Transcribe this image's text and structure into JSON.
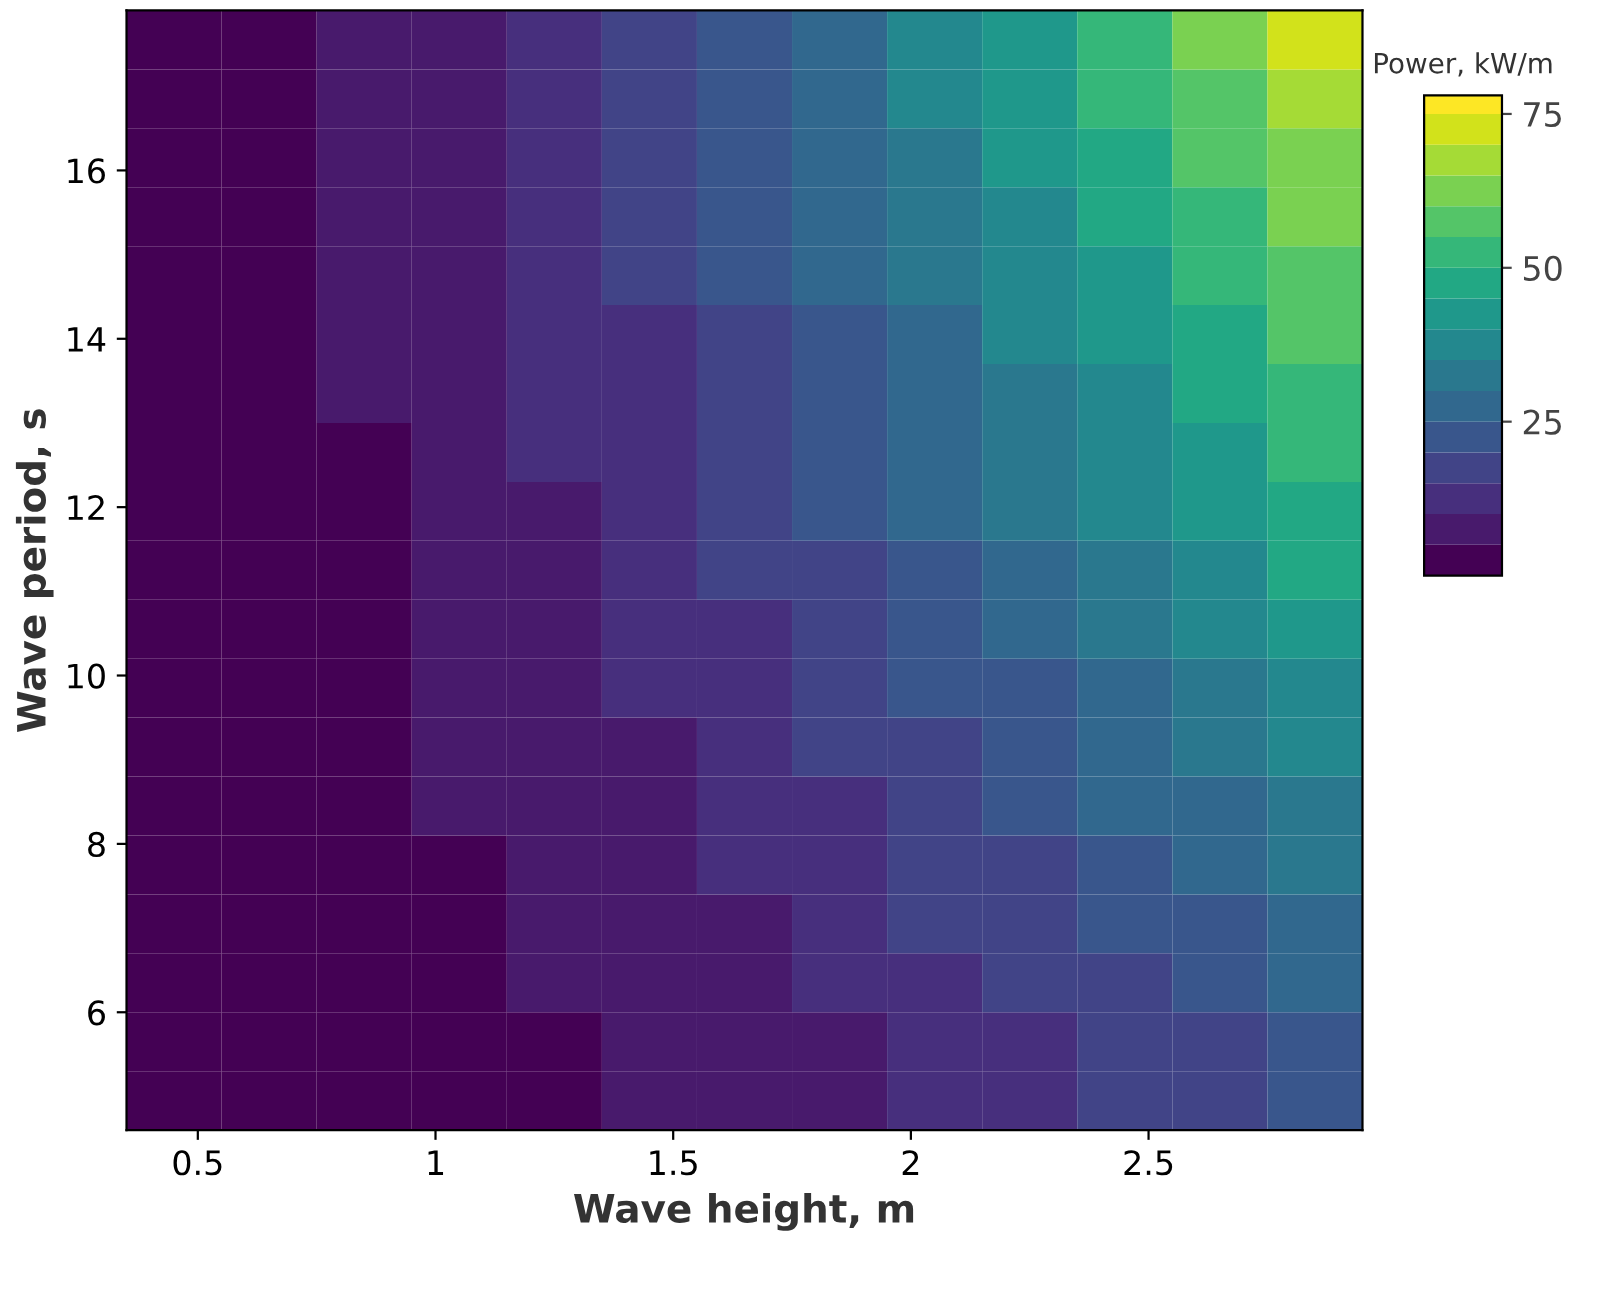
{
  "chart_data": {
    "type": "heatmap",
    "xlabel": "Wave height, m",
    "ylabel": "Wave period, s",
    "clabel": "Power, kW/m",
    "x": [
      0.45,
      0.65,
      0.85,
      1.05,
      1.25,
      1.45,
      1.65,
      1.85,
      2.05,
      2.25,
      2.45,
      2.65,
      2.85
    ],
    "y": [
      17.55,
      16.85,
      16.15,
      15.45,
      14.75,
      14.05,
      13.35,
      12.65,
      11.95,
      11.25,
      10.55,
      9.85,
      9.15,
      8.45,
      7.75,
      7.05,
      6.35,
      5.65,
      4.95
    ],
    "cells": [
      [
        2,
        4,
        6,
        9,
        13,
        18,
        23,
        29,
        36,
        44,
        52,
        60,
        70
      ],
      [
        2,
        3,
        6,
        9,
        13,
        17,
        22,
        28,
        35,
        42,
        50,
        58,
        67
      ],
      [
        2,
        3,
        6,
        9,
        12,
        17,
        22,
        27,
        33,
        40,
        47,
        56,
        64
      ],
      [
        2,
        3,
        5,
        8,
        12,
        16,
        21,
        26,
        32,
        38,
        45,
        53,
        61
      ],
      [
        1,
        3,
        5,
        8,
        11,
        15,
        20,
        25,
        30,
        37,
        43,
        51,
        59
      ],
      [
        1,
        3,
        5,
        8,
        11,
        14,
        19,
        24,
        29,
        35,
        41,
        48,
        56
      ],
      [
        1,
        3,
        5,
        7,
        10,
        14,
        18,
        22,
        27,
        33,
        39,
        46,
        53
      ],
      [
        1,
        3,
        4,
        7,
        10,
        13,
        17,
        21,
        26,
        31,
        37,
        44,
        50
      ],
      [
        1,
        2,
        4,
        6,
        9,
        12,
        16,
        20,
        25,
        30,
        35,
        41,
        48
      ],
      [
        1,
        2,
        4,
        6,
        9,
        12,
        15,
        19,
        23,
        28,
        33,
        39,
        45
      ],
      [
        1,
        2,
        4,
        6,
        8,
        11,
        14,
        18,
        22,
        26,
        31,
        36,
        42
      ],
      [
        1,
        2,
        3,
        5,
        8,
        10,
        13,
        17,
        20,
        24,
        29,
        34,
        39
      ],
      [
        1,
        2,
        3,
        5,
        7,
        9,
        12,
        15,
        19,
        23,
        27,
        31,
        36
      ],
      [
        1,
        2,
        3,
        5,
        6,
        9,
        11,
        14,
        17,
        21,
        25,
        29,
        34
      ],
      [
        1,
        2,
        3,
        4,
        6,
        8,
        10,
        13,
        16,
        19,
        23,
        27,
        31
      ],
      [
        1,
        1,
        2,
        4,
        5,
        7,
        9,
        12,
        15,
        17,
        21,
        24,
        28
      ],
      [
        1,
        1,
        2,
        3,
        5,
        7,
        8,
        11,
        13,
        16,
        19,
        22,
        25
      ],
      [
        1,
        1,
        2,
        3,
        4,
        6,
        8,
        9,
        12,
        14,
        17,
        19,
        22
      ],
      [
        0,
        1,
        2,
        3,
        4,
        5,
        7,
        8,
        10,
        12,
        15,
        17,
        20
      ]
    ],
    "xlim": [
      0.35,
      2.95
    ],
    "xticks": [
      0.5,
      1,
      1.5,
      2,
      2.5
    ],
    "ylim": [
      4.6,
      17.9
    ],
    "yticks": [
      6,
      8,
      10,
      12,
      14,
      16
    ],
    "clim": [
      0,
      78
    ],
    "cticks": [
      25,
      50,
      75
    ]
  }
}
